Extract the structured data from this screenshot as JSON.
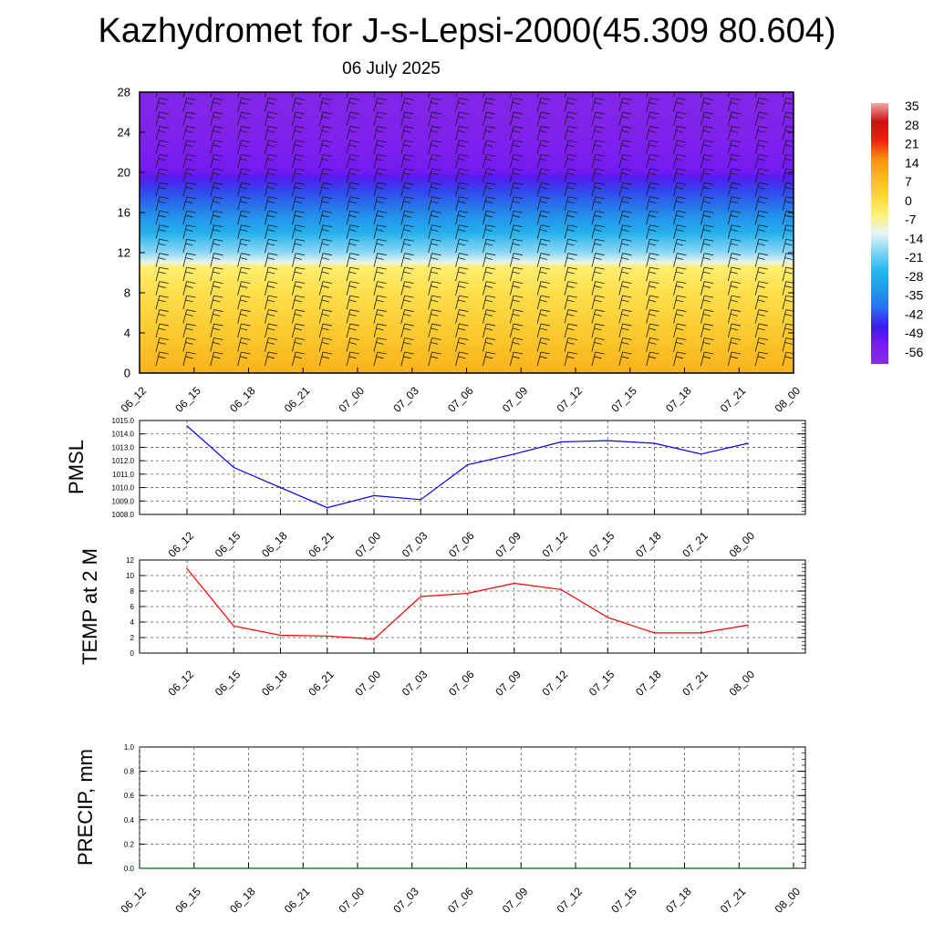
{
  "title": "Kazhydromet for J-s-Lepsi-2000(45.309 80.604)",
  "date": "06 July 2025",
  "chart_data": [
    {
      "type": "heatmap",
      "x_tick_labels": [
        "06_12",
        "06_15",
        "06_18",
        "06_21",
        "07_00",
        "07_03",
        "07_06",
        "07_09",
        "07_12",
        "07_15",
        "07_18",
        "07_21",
        "08_00"
      ],
      "y_ticks": [
        0,
        4,
        8,
        12,
        16,
        20,
        24,
        28
      ],
      "ylim": [
        0,
        28
      ],
      "colorbar_labels": [
        "35",
        "28",
        "21",
        "14",
        "7",
        "0",
        "-7",
        "-14",
        "-21",
        "-28",
        "-35",
        "-42",
        "-49",
        "-56"
      ],
      "color_stops": [
        {
          "value": -63,
          "color": "#8a2be2"
        },
        {
          "value": -56,
          "color": "#7a1cf2"
        },
        {
          "value": -49,
          "color": "#3a1aee"
        },
        {
          "value": -42,
          "color": "#2a6ff0"
        },
        {
          "value": -35,
          "color": "#1f9be8"
        },
        {
          "value": -28,
          "color": "#24b8ef"
        },
        {
          "value": -21,
          "color": "#7fd3f5"
        },
        {
          "value": -14,
          "color": "#e8f4f8"
        },
        {
          "value": -7,
          "color": "#fff27a"
        },
        {
          "value": 0,
          "color": "#fcd73a"
        },
        {
          "value": 7,
          "color": "#f8b81e"
        },
        {
          "value": 14,
          "color": "#f6910e"
        },
        {
          "value": 21,
          "color": "#ef2010"
        },
        {
          "value": 28,
          "color": "#c81010"
        },
        {
          "value": 35,
          "color": "#f2a8a8"
        }
      ],
      "profile": [
        {
          "y": 0,
          "value": 8
        },
        {
          "y": 4,
          "value": 3
        },
        {
          "y": 8,
          "value": -2
        },
        {
          "y": 10.6,
          "value": -6
        },
        {
          "y": 11,
          "value": -13
        },
        {
          "y": 12,
          "value": -20
        },
        {
          "y": 14,
          "value": -30
        },
        {
          "y": 16,
          "value": -38
        },
        {
          "y": 18,
          "value": -45
        },
        {
          "y": 19.5,
          "value": -52
        },
        {
          "y": 20,
          "value": -55
        },
        {
          "y": 22,
          "value": -57
        },
        {
          "y": 24,
          "value": -59
        },
        {
          "y": 28,
          "value": -60
        }
      ]
    },
    {
      "type": "line",
      "ylabel": "PMSL",
      "x": [
        "06_12",
        "06_15",
        "06_18",
        "06_21",
        "07_00",
        "07_03",
        "07_06",
        "07_09",
        "07_12",
        "07_15",
        "07_18",
        "07_21",
        "08_00"
      ],
      "values": [
        1014.6,
        1011.5,
        1010.0,
        1008.5,
        1009.4,
        1009.1,
        1011.7,
        1012.5,
        1013.4,
        1013.5,
        1013.3,
        1012.5,
        1013.3
      ],
      "ylim": [
        1008.0,
        1015.0
      ],
      "y_ticks": [
        "1008.0",
        "1009.0",
        "1010.0",
        "1011.0",
        "1012.0",
        "1013.0",
        "1014.0",
        "1015.0"
      ],
      "color": "#0000ff",
      "grid": true
    },
    {
      "type": "line",
      "ylabel": "TEMP at 2 M",
      "x": [
        "06_12",
        "06_15",
        "06_18",
        "06_21",
        "07_00",
        "07_03",
        "07_06",
        "07_09",
        "07_12",
        "07_15",
        "07_18",
        "07_21",
        "08_00"
      ],
      "values": [
        10.9,
        3.5,
        2.3,
        2.2,
        1.8,
        7.3,
        7.7,
        9.0,
        8.2,
        4.6,
        2.6,
        2.6,
        3.6
      ],
      "ylim": [
        0,
        12
      ],
      "y_ticks": [
        "0",
        "2",
        "4",
        "6",
        "8",
        "10",
        "12"
      ],
      "color": "#ff0000",
      "grid": true
    },
    {
      "type": "line",
      "ylabel": "PRECIP, mm",
      "x": [
        "06_12",
        "06_15",
        "06_18",
        "06_21",
        "07_00",
        "07_03",
        "07_06",
        "07_09",
        "07_12",
        "07_15",
        "07_18",
        "07_21",
        "08_00"
      ],
      "values": [
        0,
        0,
        0,
        0,
        0,
        0,
        0,
        0,
        0,
        0,
        0,
        0,
        0
      ],
      "ylim": [
        0,
        1.0
      ],
      "y_ticks": [
        "0.0",
        "0.2",
        "0.4",
        "0.6",
        "0.8",
        "1.0"
      ],
      "color": "#006400",
      "grid": true
    }
  ]
}
